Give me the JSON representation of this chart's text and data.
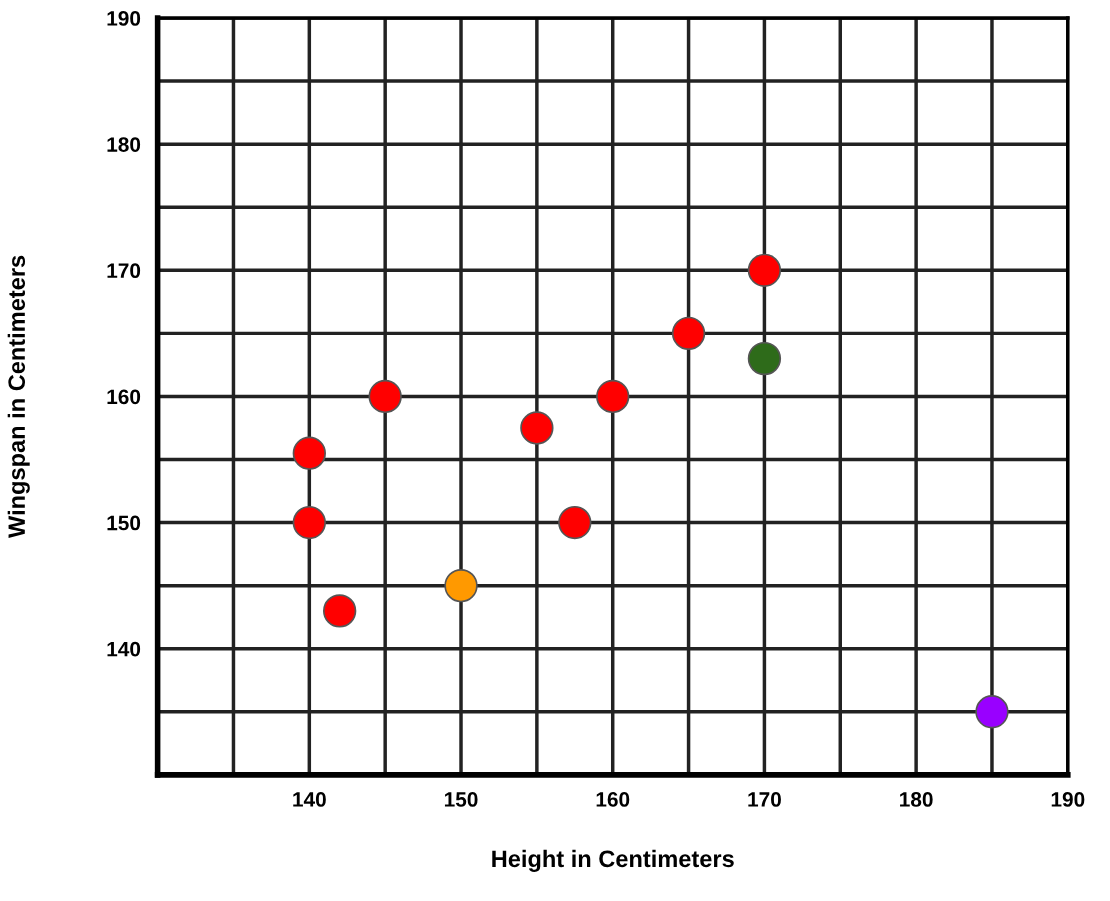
{
  "chart_data": {
    "type": "scatter",
    "xlabel": "Height in Centimeters",
    "ylabel": "Wingspan in Centimeters",
    "x": [
      140,
      140,
      142,
      145,
      150,
      155,
      157.5,
      160,
      165,
      170,
      170,
      185
    ],
    "values": [
      155.5,
      150,
      143,
      160,
      145,
      157.5,
      150,
      160,
      165,
      170,
      163,
      135
    ],
    "colors": [
      "#ff0000",
      "#ff0000",
      "#ff0000",
      "#ff0000",
      "#ff9900",
      "#ff0000",
      "#ff0000",
      "#ff0000",
      "#ff0000",
      "#ff0000",
      "#2e6b1a",
      "#9900ff"
    ],
    "marker": "circle",
    "grid": true,
    "xlim": [
      130,
      190
    ],
    "ylim": [
      130,
      190
    ],
    "xticks": [
      {
        "value": 135,
        "label": null
      },
      140,
      {
        "value": 145,
        "label": null
      },
      150,
      {
        "value": 155,
        "label": null
      },
      160,
      {
        "value": 165,
        "label": null
      },
      170,
      {
        "value": 175,
        "label": null
      },
      180,
      {
        "value": 185,
        "label": null
      },
      190
    ],
    "yticks": [
      {
        "value": 135,
        "label": null
      },
      140,
      {
        "value": 145,
        "label": null
      },
      150,
      {
        "value": 155,
        "label": null
      },
      160,
      {
        "value": 165,
        "label": null
      },
      170,
      {
        "value": 175,
        "label": null
      },
      180,
      {
        "value": 185,
        "label": null
      },
      190
    ]
  }
}
